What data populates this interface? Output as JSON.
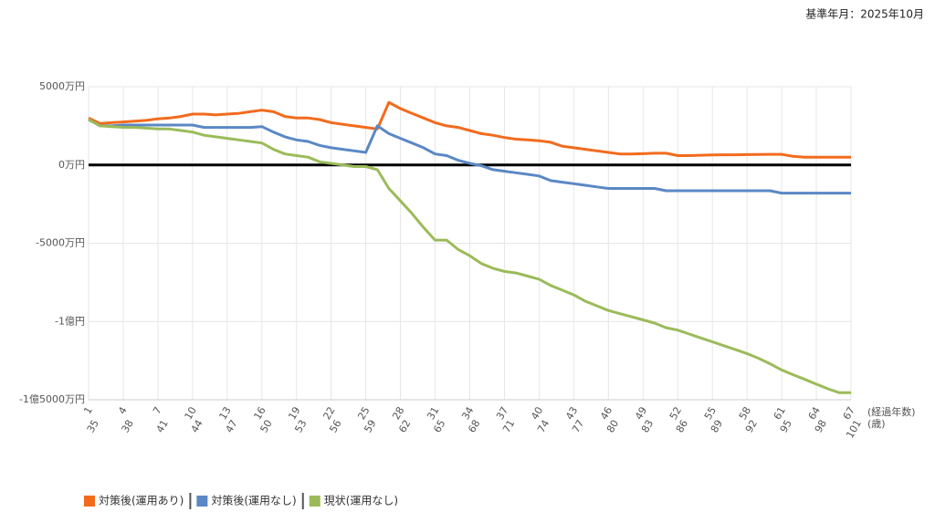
{
  "header": {
    "base_date": "基準年月：2025年10月"
  },
  "chart_data": {
    "type": "line",
    "x_unit_label": "(経過年数)",
    "age_unit_label": "(歳)",
    "categories": [
      "1",
      null,
      null,
      "4",
      null,
      null,
      "7",
      null,
      null,
      "10",
      null,
      null,
      "13",
      null,
      null,
      "16",
      null,
      null,
      "19",
      null,
      null,
      "22",
      null,
      null,
      "25",
      null,
      null,
      "28",
      null,
      null,
      "31",
      null,
      null,
      "34",
      null,
      null,
      "37",
      null,
      null,
      "40",
      null,
      null,
      "43",
      null,
      null,
      "46",
      null,
      null,
      "49",
      null,
      null,
      "52",
      null,
      null,
      "55",
      null,
      null,
      "58",
      null,
      null,
      "61",
      null,
      null,
      "64",
      null,
      null,
      "67"
    ],
    "age_labels": [
      "35",
      null,
      null,
      "38",
      null,
      null,
      "41",
      null,
      null,
      "44",
      null,
      null,
      "47",
      null,
      null,
      "50",
      null,
      null,
      "53",
      null,
      null,
      "56",
      null,
      null,
      "59",
      null,
      null,
      "62",
      null,
      null,
      "65",
      null,
      null,
      "68",
      null,
      null,
      "71",
      null,
      null,
      "74",
      null,
      null,
      "77",
      null,
      null,
      "80",
      null,
      null,
      "83",
      null,
      null,
      "86",
      null,
      null,
      "89",
      null,
      null,
      "92",
      null,
      null,
      "95",
      null,
      null,
      "98",
      null,
      null,
      "101"
    ],
    "ylim": [
      -15000,
      5000
    ],
    "yticks": [
      {
        "value": 5000,
        "label": "5000万円"
      },
      {
        "value": 0,
        "label": "0万円"
      },
      {
        "value": -5000,
        "label": "-5000万円"
      },
      {
        "value": -10000,
        "label": "-1億円"
      },
      {
        "value": -15000,
        "label": "-1億5000万円"
      }
    ],
    "grid": true,
    "series": [
      {
        "name": "対策後(運用あり)",
        "color": "#f26b1d",
        "values": [
          3000,
          2650,
          2700,
          2750,
          2800,
          2850,
          2950,
          3000,
          3100,
          3250,
          3250,
          3200,
          3250,
          3300,
          3400,
          3500,
          3400,
          3100,
          3000,
          3000,
          2900,
          2700,
          2600,
          2500,
          2400,
          2300,
          4000,
          3600,
          3300,
          3000,
          2700,
          2500,
          2400,
          2200,
          2000,
          1900,
          1750,
          1650,
          1600,
          1550,
          1450,
          1200,
          1100,
          1000,
          900,
          800,
          700,
          700,
          720,
          750,
          750,
          600,
          600,
          620,
          640,
          650,
          650,
          660,
          670,
          680,
          680,
          550,
          500,
          500,
          500,
          500,
          500
        ]
      },
      {
        "name": "対策後(運用なし)",
        "color": "#5b88c5",
        "values": [
          2900,
          2500,
          2500,
          2550,
          2550,
          2550,
          2550,
          2550,
          2550,
          2550,
          2400,
          2400,
          2400,
          2400,
          2400,
          2450,
          2100,
          1800,
          1600,
          1500,
          1250,
          1100,
          1000,
          900,
          800,
          2500,
          2000,
          1700,
          1400,
          1100,
          700,
          600,
          300,
          100,
          -50,
          -300,
          -400,
          -500,
          -600,
          -700,
          -1000,
          -1100,
          -1200,
          -1300,
          -1400,
          -1500,
          -1500,
          -1500,
          -1500,
          -1500,
          -1650,
          -1650,
          -1650,
          -1650,
          -1650,
          -1650,
          -1650,
          -1650,
          -1650,
          -1650,
          -1800,
          -1800,
          -1800,
          -1800,
          -1800,
          -1800,
          -1800
        ]
      },
      {
        "name": "現状(運用なし)",
        "color": "#9bbb59",
        "values": [
          2900,
          2500,
          2450,
          2400,
          2400,
          2350,
          2300,
          2300,
          2200,
          2100,
          1900,
          1800,
          1700,
          1600,
          1500,
          1400,
          1000,
          700,
          600,
          500,
          200,
          100,
          0,
          -100,
          -100,
          -300,
          -1500,
          -2300,
          -3100,
          -4000,
          -4800,
          -4800,
          -5400,
          -5800,
          -6300,
          -6600,
          -6800,
          -6900,
          -7100,
          -7300,
          -7700,
          -8000,
          -8300,
          -8700,
          -9000,
          -9300,
          -9500,
          -9700,
          -9900,
          -10100,
          -10400,
          -10550,
          -10800,
          -11050,
          -11300,
          -11550,
          -11800,
          -12050,
          -12350,
          -12700,
          -13100,
          -13400,
          -13700,
          -14000,
          -14300,
          -14550,
          -14550
        ]
      }
    ]
  }
}
